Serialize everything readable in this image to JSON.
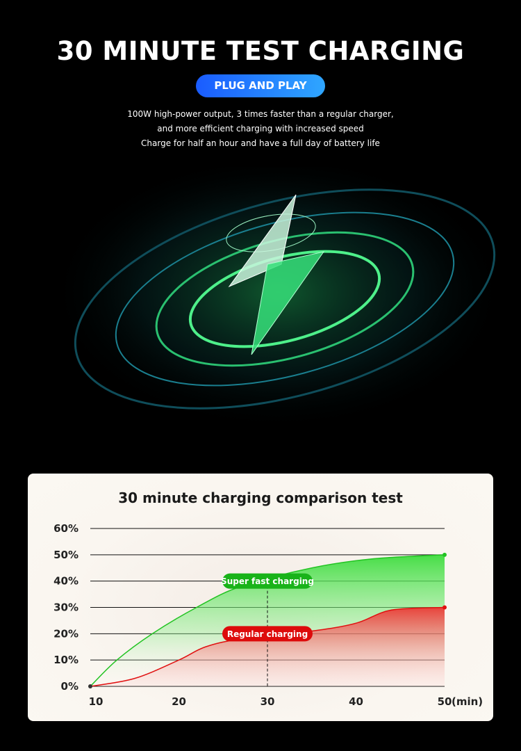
{
  "header": {
    "title": "30 MINUTE TEST CHARGING",
    "badge": "PLUG AND PLAY",
    "lines": [
      "100W high-power output, 3 times faster than a regular charger,",
      "and more efficient charging with increased speed",
      "Charge for half an hour and have a full day of battery life"
    ]
  },
  "hero": {
    "icon": "lightning-bolt-icon",
    "accent": "#3ee07a"
  },
  "chart_data": {
    "type": "area",
    "title": "30 minute charging comparison test",
    "xlabel": "(min)",
    "x_ticks": [
      "10",
      "20",
      "30",
      "40",
      "50"
    ],
    "y_ticks": [
      "0%",
      "10%",
      "20%",
      "30%",
      "40%",
      "50%",
      "60%"
    ],
    "xlim": [
      10,
      50
    ],
    "ylim": [
      0,
      60
    ],
    "grid": true,
    "marker_x": 30,
    "series": [
      {
        "name": "Super fast charging",
        "color": "#22c322",
        "x": [
          10,
          13,
          17,
          22,
          27,
          35,
          42,
          50
        ],
        "y": [
          0,
          10,
          20,
          30,
          38,
          45,
          48.5,
          50
        ]
      },
      {
        "name": "Regular charging",
        "color": "#e01010",
        "x": [
          10,
          15,
          20,
          23,
          27,
          35,
          40,
          44,
          50
        ],
        "y": [
          0,
          3,
          10,
          15,
          18,
          21,
          24,
          29,
          30
        ]
      }
    ]
  }
}
